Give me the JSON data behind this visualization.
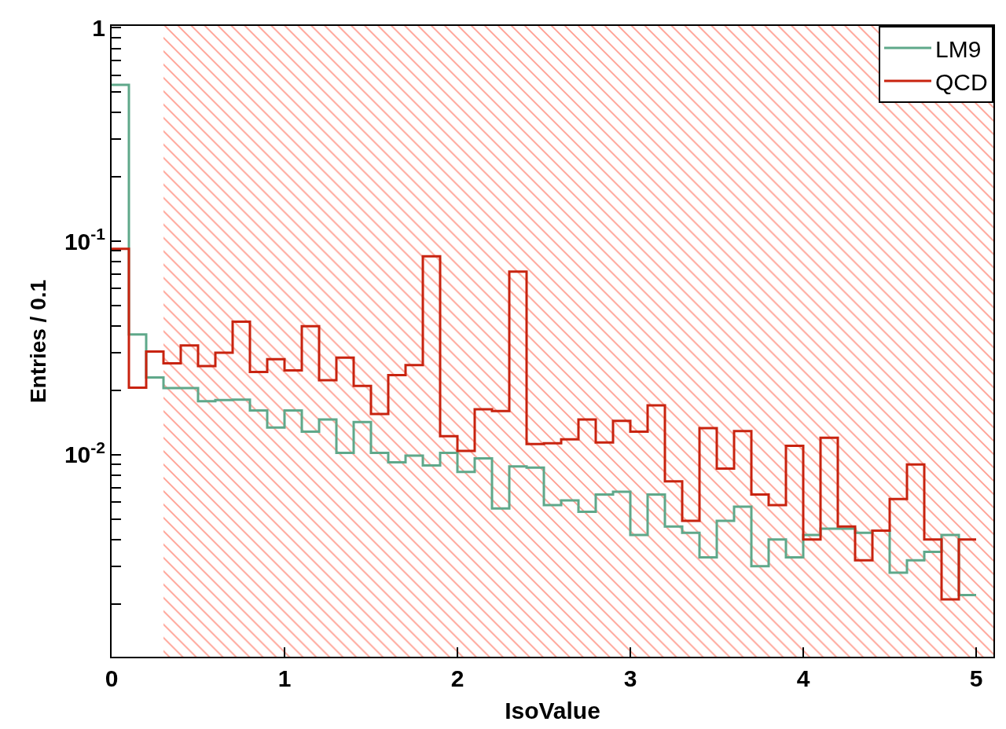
{
  "chart_data": {
    "type": "histogram",
    "xlabel": "IsoValue",
    "ylabel": "Entries / 0.1",
    "bins": [
      0,
      0.1,
      0.2,
      0.3,
      0.4,
      0.5,
      0.6,
      0.7,
      0.8,
      0.9,
      1.0,
      1.1,
      1.2,
      1.3,
      1.4,
      1.5,
      1.6,
      1.7,
      1.8,
      1.9,
      2.0,
      2.1,
      2.2,
      2.3,
      2.4,
      2.5,
      2.6,
      2.7,
      2.8,
      2.9,
      3.0,
      3.1,
      3.2,
      3.3,
      3.4,
      3.5,
      3.6,
      3.7,
      3.8,
      3.9,
      4.0,
      4.1,
      4.2,
      4.3,
      4.4,
      4.5,
      4.6,
      4.7,
      4.8,
      4.9,
      5.0
    ],
    "series": [
      {
        "name": "LM9",
        "color": "#5fa88a",
        "values": [
          0.54,
          0.0366,
          0.023,
          0.0205,
          0.0205,
          0.0178,
          0.018,
          0.0181,
          0.0161,
          0.0134,
          0.0161,
          0.0128,
          0.0146,
          0.0102,
          0.0142,
          0.0102,
          0.0092,
          0.0099,
          0.0089,
          0.0102,
          0.0083,
          0.0096,
          0.0056,
          0.0088,
          0.0087,
          0.0058,
          0.0061,
          0.0054,
          0.0065,
          0.0067,
          0.0042,
          0.0065,
          0.0046,
          0.0043,
          0.0033,
          0.0049,
          0.0057,
          0.003,
          0.004,
          0.0033,
          0.0042,
          0.0045,
          0.0045,
          0.0043,
          0.0044,
          0.0028,
          0.0032,
          0.0035,
          0.0042,
          0.0022
        ]
      },
      {
        "name": "QCD",
        "color": "#c8230f",
        "values": [
          0.092,
          0.0206,
          0.0304,
          0.0268,
          0.0325,
          0.026,
          0.03,
          0.042,
          0.0244,
          0.028,
          0.0248,
          0.04,
          0.0223,
          0.0285,
          0.021,
          0.0155,
          0.0236,
          0.0263,
          0.085,
          0.0122,
          0.0104,
          0.0163,
          0.016,
          0.072,
          0.0112,
          0.0113,
          0.0118,
          0.0146,
          0.0114,
          0.0144,
          0.0128,
          0.017,
          0.0075,
          0.0049,
          0.0133,
          0.0086,
          0.0129,
          0.0065,
          0.0058,
          0.011,
          0.004,
          0.012,
          0.0046,
          0.0032,
          0.0044,
          0.0062,
          0.009,
          0.004,
          0.0021,
          0.004
        ]
      }
    ],
    "bands": [
      {
        "axis": "x",
        "from": 0.3,
        "to": 5.1,
        "color": "#ff3b1f"
      }
    ],
    "xlim": [
      0,
      5.1
    ],
    "xticks": [
      0,
      1,
      2,
      3,
      4,
      5
    ],
    "ylim": [
      0.00113,
      1.02
    ],
    "log": "y",
    "yticks": [
      {
        "value": 0.002,
        "label": null
      },
      {
        "value": 0.003,
        "label": null
      },
      {
        "value": 0.004,
        "label": null
      },
      {
        "value": 0.005,
        "label": null
      },
      {
        "value": 0.006,
        "label": null
      },
      {
        "value": 0.007,
        "label": null
      },
      {
        "value": 0.008,
        "label": null
      },
      {
        "value": 0.009,
        "label": null
      },
      {
        "value": 0.01,
        "label": "10$^{-2}$"
      },
      {
        "value": 0.02,
        "label": null
      },
      {
        "value": 0.03,
        "label": null
      },
      {
        "value": 0.04,
        "label": null
      },
      {
        "value": 0.05,
        "label": null
      },
      {
        "value": 0.06,
        "label": null
      },
      {
        "value": 0.07,
        "label": null
      },
      {
        "value": 0.08,
        "label": null
      },
      {
        "value": 0.09,
        "label": null
      },
      {
        "value": 0.1,
        "label": "10$^{-1}$"
      },
      {
        "value": 0.2,
        "label": null
      },
      {
        "value": 0.3,
        "label": null
      },
      {
        "value": 0.4,
        "label": null
      },
      {
        "value": 0.5,
        "label": null
      },
      {
        "value": 0.6,
        "label": null
      },
      {
        "value": 0.7,
        "label": null
      },
      {
        "value": 0.8,
        "label": null
      },
      {
        "value": 0.9,
        "label": null
      },
      1
    ],
    "legend": "top right"
  }
}
